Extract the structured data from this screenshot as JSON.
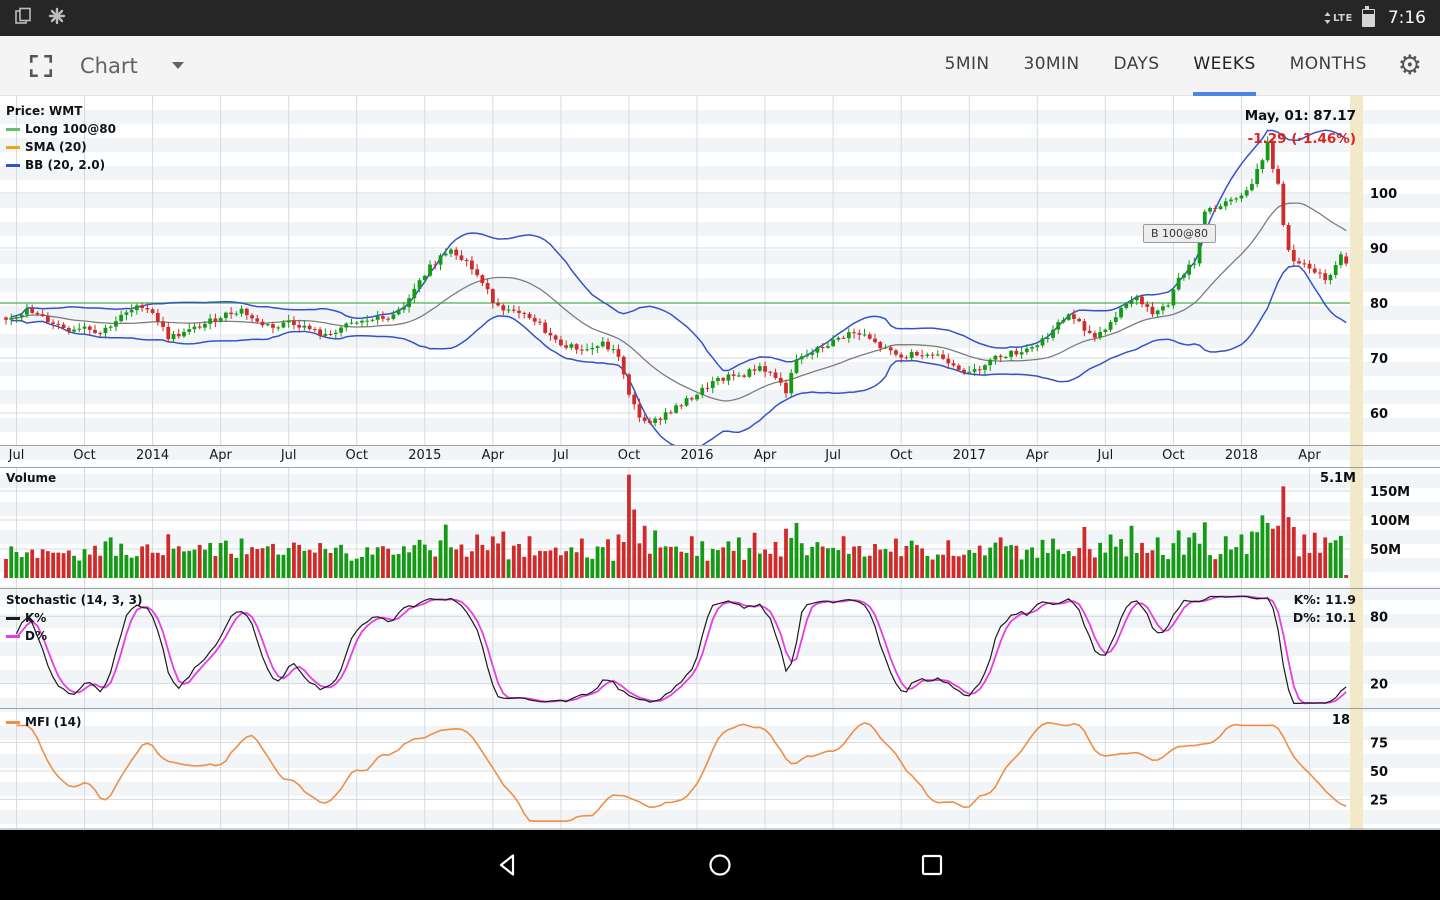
{
  "status_bar": {
    "time": "7:16",
    "lte_label": "LTE"
  },
  "toolbar": {
    "title": "Chart",
    "tabs": [
      {
        "label": "5MIN"
      },
      {
        "label": "30MIN"
      },
      {
        "label": "DAYS"
      },
      {
        "label": "WEEKS"
      },
      {
        "label": "MONTHS"
      }
    ],
    "active_tab": "WEEKS"
  },
  "panes": {
    "price": {
      "title": "Price: WMT",
      "overlays": [
        {
          "label": "Long 100@80"
        },
        {
          "label": "SMA (20)"
        },
        {
          "label": "BB (20, 2.0)"
        }
      ],
      "quote": {
        "line1": "May, 01: 87.17",
        "line2": "-1.29 (-1.46%)"
      },
      "marker": "B 100@80"
    },
    "volume": {
      "title": "Volume",
      "current": "5.1M"
    },
    "stoch": {
      "title": "Stochastic (14, 3, 3)",
      "series": [
        {
          "label": "K%"
        },
        {
          "label": "D%"
        }
      ],
      "value_k": "K%: 11.9",
      "value_d": "D%: 10.1"
    },
    "mfi": {
      "title": "MFI (14)",
      "value": "18"
    }
  },
  "nav_bar": {
    "icons": [
      "back",
      "home",
      "recents"
    ]
  },
  "colors": {
    "long": "#63c063",
    "sma_legend": "#e6a817",
    "sma_line": "#7d7d7d",
    "bb": "#3452c8",
    "up": "#159a15",
    "down": "#cf2b2b",
    "k": "#1b1b1b",
    "d": "#e33fe3",
    "mfi": "#ef8e46",
    "accent": "#4a86e8",
    "change_neg": "#e01f1f",
    "grid": "#d7dadf",
    "strip": "#f2e9c9"
  },
  "chart_data": [
    {
      "type": "candlestick",
      "name": "Price WMT weekly",
      "ylim": [
        55,
        113
      ],
      "y_ticks": [
        100,
        90,
        80,
        70,
        60
      ],
      "x_tick_labels": [
        "Jul",
        "Oct",
        "2014",
        "Apr",
        "Jul",
        "Oct",
        "2015",
        "Apr",
        "Jul",
        "Oct",
        "2016",
        "Apr",
        "Jul",
        "Oct",
        "2017",
        "Apr",
        "Jul",
        "Oct",
        "2018",
        "Apr"
      ],
      "x_tick_weeks": [
        2,
        15,
        28,
        41,
        54,
        67,
        80,
        93,
        106,
        119,
        132,
        145,
        158,
        171,
        184,
        197,
        210,
        223,
        236,
        249
      ],
      "weeks_total": 257,
      "long_line_price": 80,
      "overlays": [
        "Long 100@80",
        "SMA (20)",
        "BB (20, 2.0)"
      ],
      "last": {
        "date": "May, 01",
        "close": 87.17,
        "change": -1.29,
        "change_pct": -1.46
      },
      "close_anchors": [
        [
          0,
          77.2
        ],
        [
          4,
          78.6
        ],
        [
          8,
          76.8
        ],
        [
          12,
          75.2
        ],
        [
          15,
          75.8
        ],
        [
          18,
          74.6
        ],
        [
          22,
          77.5
        ],
        [
          26,
          79.6
        ],
        [
          28,
          78.4
        ],
        [
          31,
          73.8
        ],
        [
          34,
          74.5
        ],
        [
          38,
          76.2
        ],
        [
          41,
          77.6
        ],
        [
          45,
          78.8
        ],
        [
          48,
          76.4
        ],
        [
          52,
          75.6
        ],
        [
          54,
          76.8
        ],
        [
          58,
          75.2
        ],
        [
          61,
          73.9
        ],
        [
          64,
          75.5
        ],
        [
          67,
          76.3
        ],
        [
          70,
          77.0
        ],
        [
          74,
          77.5
        ],
        [
          77,
          80.5
        ],
        [
          80,
          85.5
        ],
        [
          83,
          88.5
        ],
        [
          85,
          90.0
        ],
        [
          88,
          87.5
        ],
        [
          90,
          85.0
        ],
        [
          93,
          80.5
        ],
        [
          96,
          78.5
        ],
        [
          99,
          77.5
        ],
        [
          102,
          76.0
        ],
        [
          105,
          73.0
        ],
        [
          108,
          72.0
        ],
        [
          111,
          71.5
        ],
        [
          114,
          72.5
        ],
        [
          117,
          70.5
        ],
        [
          119,
          63.0
        ],
        [
          121,
          59.5
        ],
        [
          123,
          57.8
        ],
        [
          126,
          60.0
        ],
        [
          129,
          61.5
        ],
        [
          132,
          63.5
        ],
        [
          135,
          65.5
        ],
        [
          138,
          66.5
        ],
        [
          141,
          67.0
        ],
        [
          144,
          68.5
        ],
        [
          147,
          66.5
        ],
        [
          149,
          64.0
        ],
        [
          151,
          69.5
        ],
        [
          154,
          71.0
        ],
        [
          158,
          73.0
        ],
        [
          161,
          74.5
        ],
        [
          164,
          74.0
        ],
        [
          167,
          72.0
        ],
        [
          171,
          70.0
        ],
        [
          174,
          71.0
        ],
        [
          178,
          70.5
        ],
        [
          181,
          69.0
        ],
        [
          184,
          67.0
        ],
        [
          187,
          69.0
        ],
        [
          190,
          70.5
        ],
        [
          193,
          71.0
        ],
        [
          197,
          72.5
        ],
        [
          200,
          75.0
        ],
        [
          203,
          78.0
        ],
        [
          206,
          75.5
        ],
        [
          208,
          73.8
        ],
        [
          211,
          76.5
        ],
        [
          214,
          80.0
        ],
        [
          216,
          81.0
        ],
        [
          219,
          78.5
        ],
        [
          222,
          80.0
        ],
        [
          224,
          84.5
        ],
        [
          227,
          87.5
        ],
        [
          229,
          97.0
        ],
        [
          232,
          97.5
        ],
        [
          234,
          98.5
        ],
        [
          236,
          99.5
        ],
        [
          238,
          102.0
        ],
        [
          240,
          106.5
        ],
        [
          241,
          109.0
        ],
        [
          242,
          104.5
        ],
        [
          243,
          102.0
        ],
        [
          244,
          94.0
        ],
        [
          245,
          90.0
        ],
        [
          246,
          88.0
        ],
        [
          248,
          87.5
        ],
        [
          250,
          86.0
        ],
        [
          252,
          84.5
        ],
        [
          254,
          86.5
        ],
        [
          255,
          88.5
        ],
        [
          256,
          87.17
        ]
      ]
    },
    {
      "type": "bar",
      "name": "Volume",
      "unit": "M",
      "y_ticks": [
        150,
        100,
        50
      ],
      "y_tick_labels": [
        "150M",
        "100M",
        "50M"
      ],
      "base_range": [
        28,
        56
      ],
      "last_value": 5.1,
      "last_label": "5.1M",
      "spikes": [
        [
          20,
          70
        ],
        [
          45,
          68
        ],
        [
          84,
          92
        ],
        [
          90,
          75
        ],
        [
          95,
          80
        ],
        [
          100,
          72
        ],
        [
          110,
          68
        ],
        [
          117,
          75
        ],
        [
          119,
          178
        ],
        [
          120,
          118
        ],
        [
          122,
          90
        ],
        [
          124,
          82
        ],
        [
          131,
          72
        ],
        [
          140,
          70
        ],
        [
          143,
          78
        ],
        [
          149,
          85
        ],
        [
          151,
          95
        ],
        [
          160,
          72
        ],
        [
          170,
          68
        ],
        [
          180,
          65
        ],
        [
          190,
          70
        ],
        [
          200,
          68
        ],
        [
          206,
          88
        ],
        [
          211,
          75
        ],
        [
          215,
          90
        ],
        [
          220,
          70
        ],
        [
          224,
          82
        ],
        [
          227,
          78
        ],
        [
          229,
          96
        ],
        [
          233,
          72
        ],
        [
          236,
          75
        ],
        [
          238,
          80
        ],
        [
          240,
          108
        ],
        [
          241,
          95
        ],
        [
          242,
          85
        ],
        [
          243,
          90
        ],
        [
          244,
          158
        ],
        [
          245,
          105
        ],
        [
          246,
          88
        ],
        [
          248,
          75
        ],
        [
          250,
          78
        ],
        [
          252,
          70
        ],
        [
          254,
          65
        ]
      ]
    },
    {
      "type": "line",
      "name": "Stochastic (14, 3, 3)",
      "params": [
        14,
        3,
        3
      ],
      "series": [
        "K%",
        "D%"
      ],
      "range": [
        0,
        100
      ],
      "y_ticks": [
        80,
        20
      ],
      "last": {
        "K": 11.9,
        "D": 10.1
      }
    },
    {
      "type": "line",
      "name": "MFI (14)",
      "period": 14,
      "range": [
        0,
        100
      ],
      "y_ticks": [
        75,
        50,
        25
      ],
      "last": 18
    }
  ]
}
